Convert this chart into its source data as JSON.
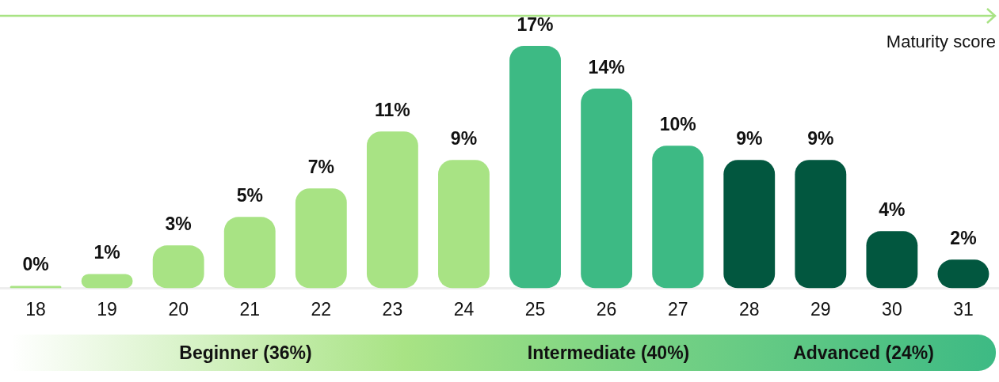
{
  "chart_data": {
    "type": "bar",
    "xlabel": "Maturity score",
    "categories": [
      "18",
      "19",
      "20",
      "21",
      "22",
      "23",
      "24",
      "25",
      "26",
      "27",
      "28",
      "29",
      "30",
      "31"
    ],
    "values": [
      0,
      1,
      3,
      5,
      7,
      11,
      9,
      17,
      14,
      10,
      9,
      9,
      4,
      2
    ],
    "value_labels": [
      "0%",
      "1%",
      "3%",
      "5%",
      "7%",
      "11%",
      "9%",
      "17%",
      "14%",
      "10%",
      "9%",
      "9%",
      "4%",
      "2%"
    ],
    "colors": [
      "#a8e384",
      "#a8e384",
      "#a8e384",
      "#a8e384",
      "#a8e384",
      "#a8e384",
      "#a8e384",
      "#3dba84",
      "#3dba84",
      "#3dba84",
      "#02573f",
      "#02573f",
      "#02573f",
      "#02573f"
    ],
    "annotations": [
      "Beginner (36%)",
      "Intermediate (40%)",
      "Advanced (24%)"
    ],
    "tick_labels": "x",
    "legend": false,
    "grid": false
  }
}
